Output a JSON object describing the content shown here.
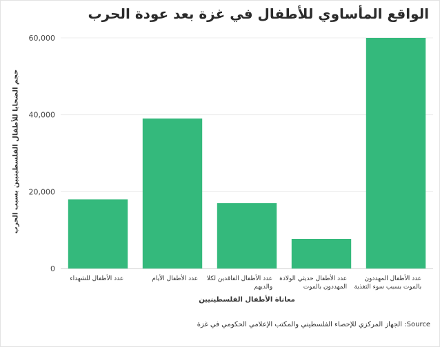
{
  "title": "الواقع المأساوي للأطفال في غزة بعد عودة الحرب",
  "source": "الجهاز المركزي للإحصاء الفلسطيني والمكتب الإعلامي الحكومي في غزة :Source",
  "colors": {
    "bar": "#34b97c",
    "grid": "#ececec",
    "axis": "#cccccc"
  },
  "chart_data": {
    "type": "bar",
    "title": "الواقع المأساوي للأطفال في غزة بعد عودة الحرب",
    "xlabel": "معاناة الأطفال الفلسطينيين",
    "ylabel": "حجم الضحايا للأطفال الفلسطينيين بسبب الحرب",
    "categories": [
      [
        "عدد الأطفال للشهداء"
      ],
      [
        "عدد الأطفال الأيام"
      ],
      [
        "عدد الأطفال الفاقدين لكلا",
        "والديهم"
      ],
      [
        "عدد الأطفال حديثي الولادة",
        "المهددون بالموت"
      ],
      [
        "عدد الأطفال المهددون",
        "بالموت بسبب سوء التغذية"
      ]
    ],
    "values": [
      18000,
      39000,
      17000,
      7700,
      60000
    ],
    "ylim": [
      0,
      60000
    ],
    "yticks": [
      0,
      20000,
      40000,
      60000
    ],
    "ytick_labels": [
      "0",
      "20,000",
      "40,000",
      "60,000"
    ],
    "grid": true,
    "legend": "none"
  }
}
